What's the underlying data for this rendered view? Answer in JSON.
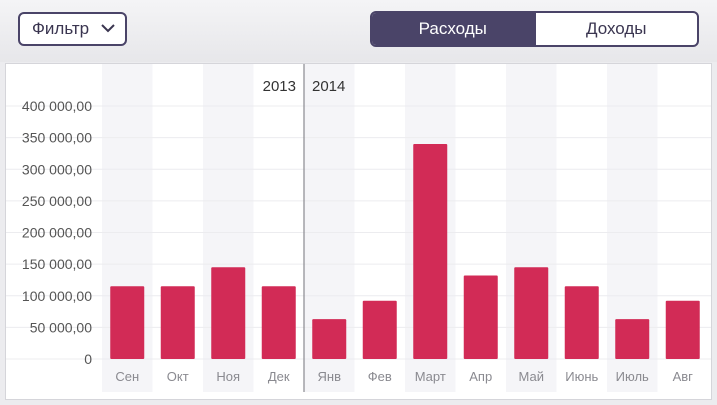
{
  "toolbar": {
    "filter_label": "Фильтр",
    "filter_icon": "chevron-down-icon",
    "segments": [
      {
        "label": "Расходы",
        "active": true
      },
      {
        "label": "Доходы",
        "active": false
      }
    ]
  },
  "colors": {
    "bar": "#d22b56",
    "accent": "#4a4468",
    "band": "#f5f5f8"
  },
  "chart_data": {
    "type": "bar",
    "title": "",
    "xlabel": "",
    "ylabel": "",
    "ylim": [
      0,
      400000
    ],
    "yticks": [
      "0",
      "50 000,00",
      "100 000,00",
      "150 000,00",
      "200 000,00",
      "250 000,00",
      "300 000,00",
      "350 000,00",
      "400 000,00"
    ],
    "years": [
      {
        "label": "2013",
        "categories": [
          "Сен",
          "Окт",
          "Ноя",
          "Дек"
        ]
      },
      {
        "label": "2014",
        "categories": [
          "Янв",
          "Фев",
          "Март",
          "Апр",
          "Май",
          "Июнь",
          "Июль",
          "Авг"
        ]
      }
    ],
    "categories": [
      "Сен",
      "Окт",
      "Ноя",
      "Дек",
      "Янв",
      "Фев",
      "Март",
      "Апр",
      "Май",
      "Июнь",
      "Июль",
      "Авг"
    ],
    "values": [
      115000,
      115000,
      145000,
      115000,
      63000,
      92000,
      340000,
      132000,
      145000,
      115000,
      63000,
      92000
    ],
    "grid": true,
    "legend": "none"
  }
}
